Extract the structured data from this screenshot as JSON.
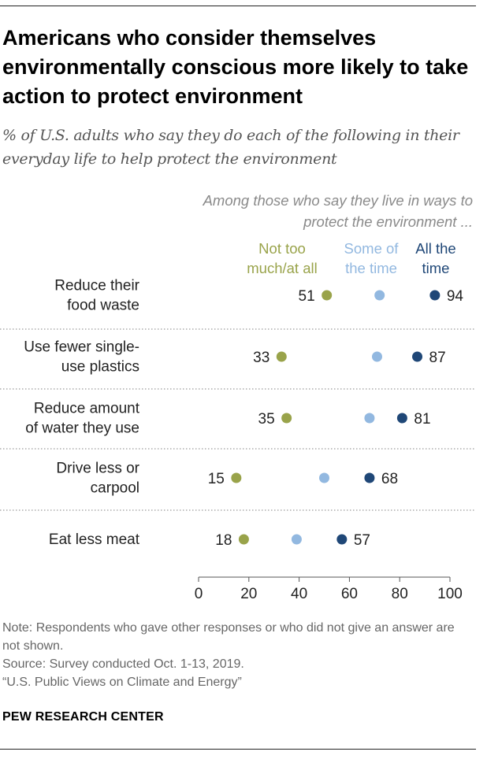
{
  "title": "Americans who consider themselves environmentally conscious more likely to take action to protect environment",
  "subtitle": "% of U.S. adults who say they do each of the following in their everyday life to help protect the environment",
  "legend_header": "Among those who say they live in ways to protect the environment ...",
  "notes": {
    "note": "Note: Respondents who gave other responses or who did not give an answer are not shown.",
    "source": "Source: Survey conducted Oct. 1-13, 2019.",
    "report": "“U.S. Public Views on Climate and Energy”"
  },
  "brand": "PEW RESEARCH CENTER",
  "colors": {
    "not_too_much": "#99a34a",
    "some_of_the_time": "#92b8e0",
    "all_the_time": "#1f4777",
    "axis": "#555555",
    "text": "#222222"
  },
  "chart_data": {
    "type": "scatter",
    "categories": [
      [
        "Reduce their",
        "food waste"
      ],
      [
        "Use fewer single-",
        "use plastics"
      ],
      [
        "Reduce amount",
        "of water they use"
      ],
      [
        "Drive less or",
        "carpool"
      ],
      [
        "Eat less meat"
      ]
    ],
    "series": [
      {
        "name": "Not too much/at all",
        "legend_lines": [
          "Not too",
          "much/at all"
        ],
        "values": [
          51,
          33,
          35,
          15,
          18
        ],
        "labeled": true
      },
      {
        "name": "Some of the time",
        "legend_lines": [
          "Some of",
          "the time"
        ],
        "values": [
          72,
          71,
          68,
          50,
          39
        ],
        "labeled": false
      },
      {
        "name": "All the time",
        "legend_lines": [
          "All the",
          "time"
        ],
        "values": [
          94,
          87,
          81,
          68,
          57
        ],
        "labeled": true
      }
    ],
    "xlim": [
      0,
      100
    ],
    "xticks": [
      0,
      20,
      40,
      60,
      80,
      100
    ],
    "legend_position": "top"
  }
}
